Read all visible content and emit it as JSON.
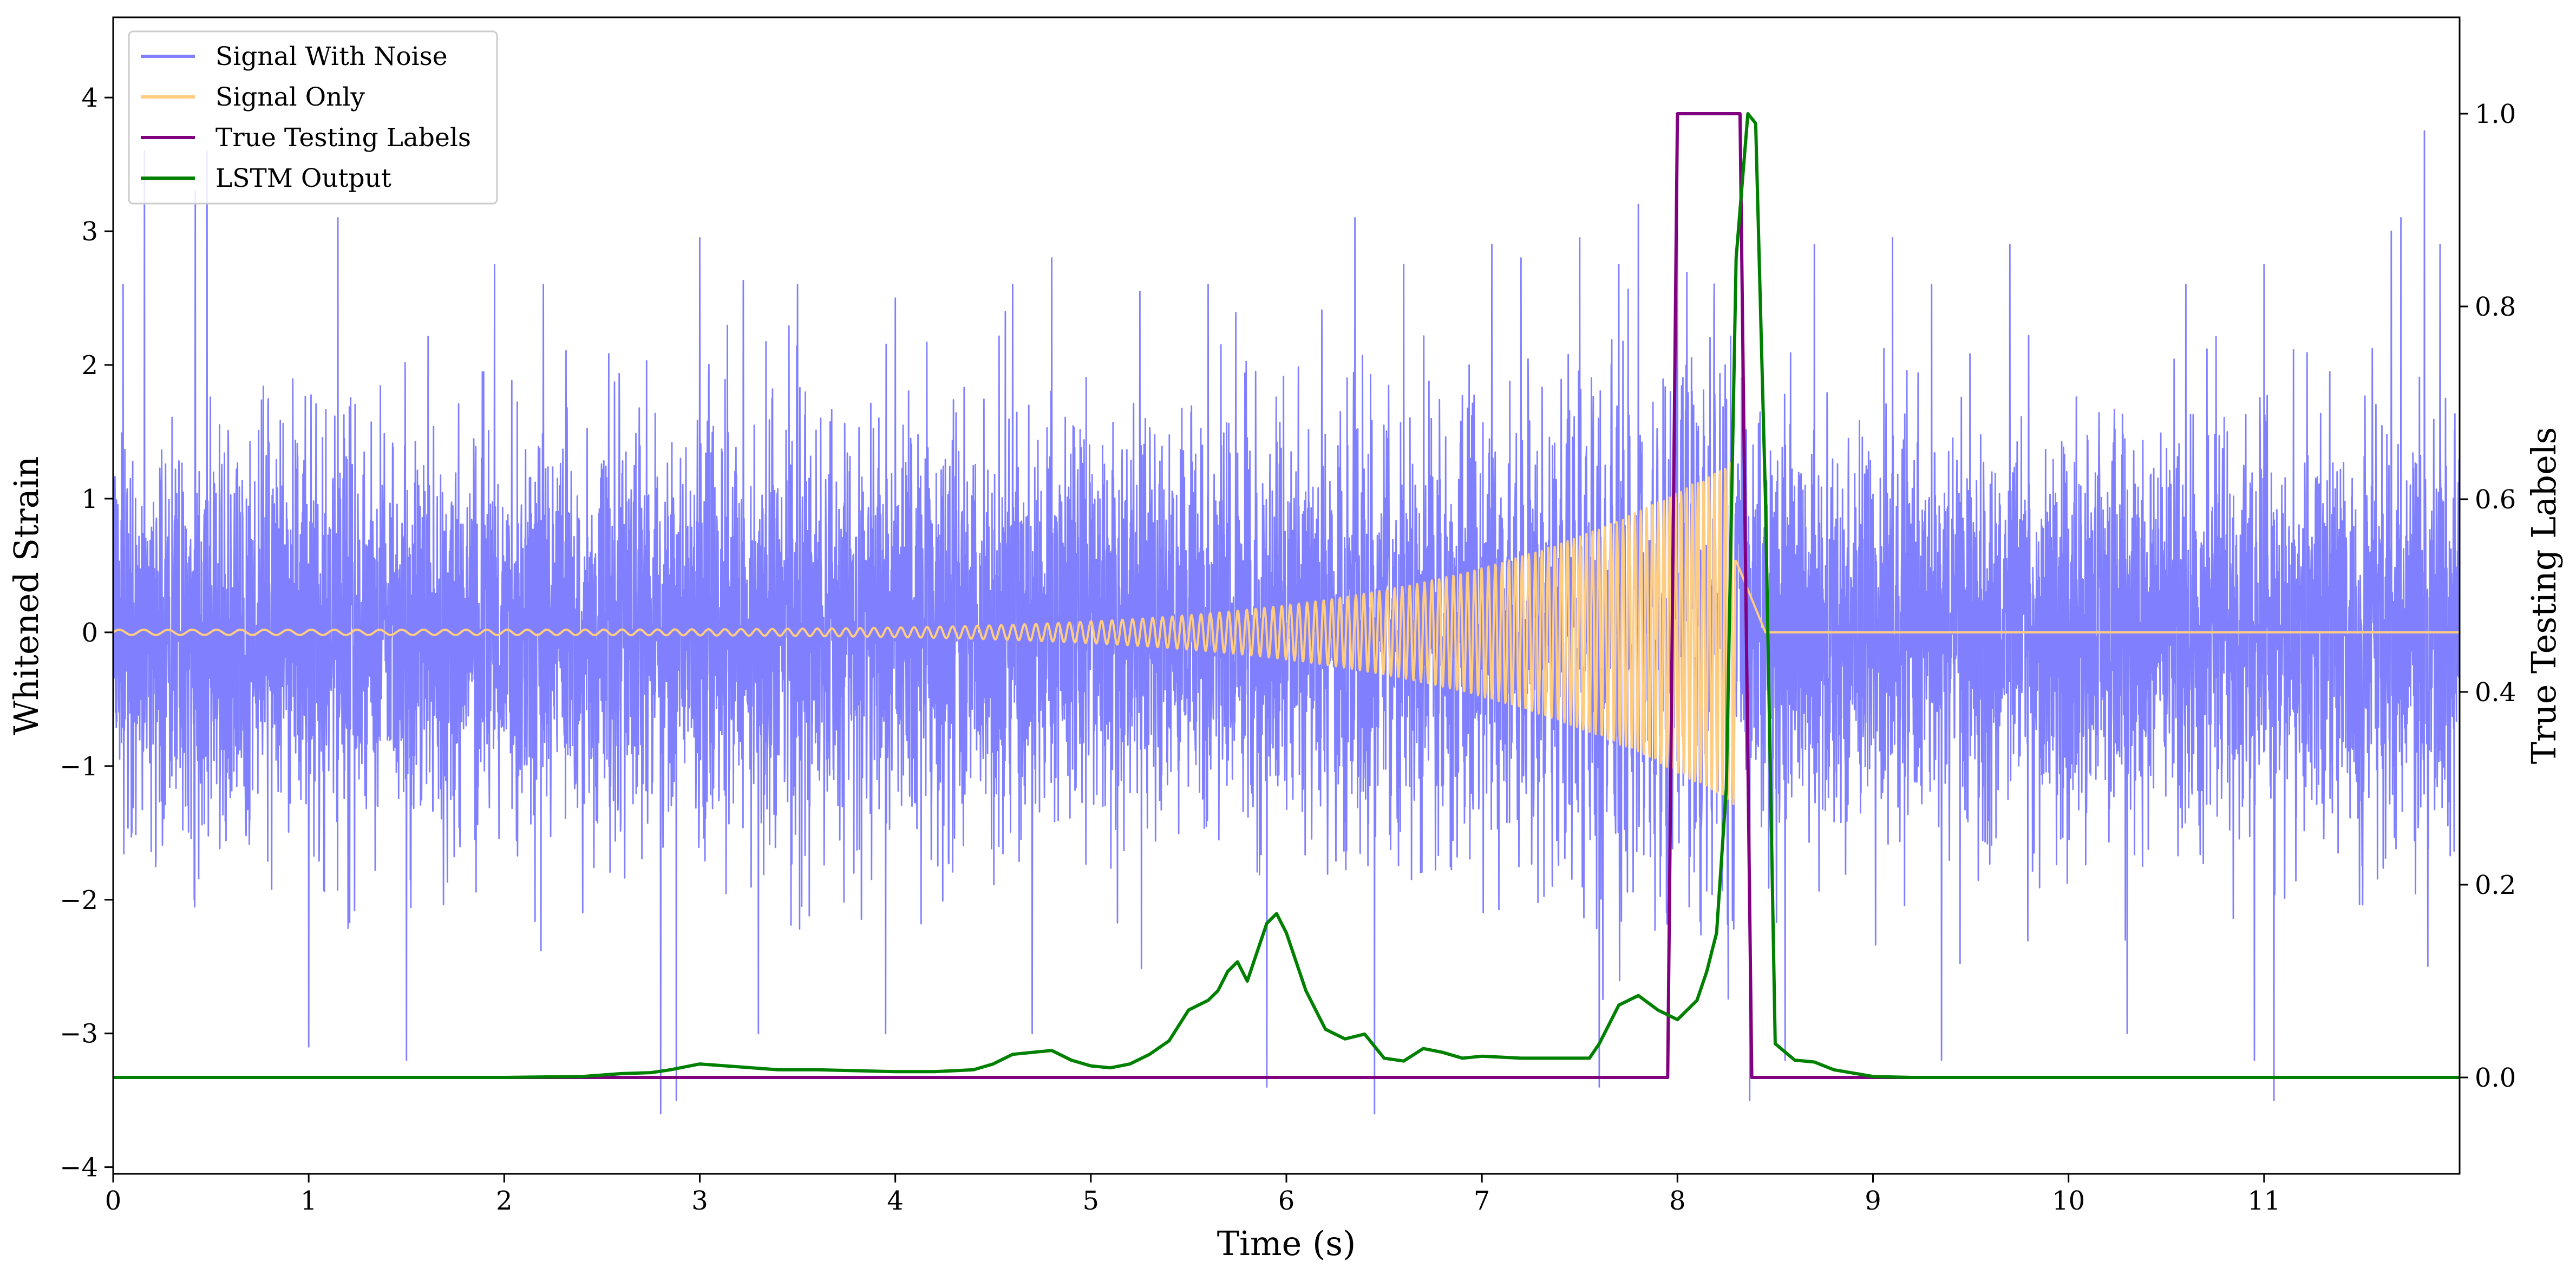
{
  "chart_data": {
    "type": "line",
    "xlabel": "Time (s)",
    "ylabel": "Whitened Strain",
    "y2label": "True Testing Labels",
    "xlim": [
      0,
      12
    ],
    "ylim": [
      -4.05,
      4.6
    ],
    "y2lim": [
      -0.1,
      1.1
    ],
    "xticks": [
      0,
      1,
      2,
      3,
      4,
      5,
      6,
      7,
      8,
      9,
      10,
      11
    ],
    "yticks": [
      -4,
      -3,
      -2,
      -1,
      0,
      1,
      2,
      3,
      4
    ],
    "y2ticks": [
      0.0,
      0.2,
      0.4,
      0.6,
      0.8,
      1.0
    ],
    "legend_position": "upper-left",
    "grid": false,
    "series": [
      {
        "name": "Signal With Noise",
        "axis": "left",
        "color": "#8080ff",
        "noise_std": 0.75,
        "noise_peaks": [
          [
            0.05,
            2.6
          ],
          [
            0.16,
            3.6
          ],
          [
            0.42,
            3.3
          ],
          [
            0.48,
            3.6
          ],
          [
            1.15,
            3.1
          ],
          [
            1.95,
            2.75
          ],
          [
            2.2,
            2.6
          ],
          [
            3.0,
            2.95
          ],
          [
            3.5,
            2.6
          ],
          [
            4.0,
            2.5
          ],
          [
            4.6,
            2.6
          ],
          [
            4.8,
            2.8
          ],
          [
            5.25,
            2.55
          ],
          [
            5.6,
            2.6
          ],
          [
            6.35,
            3.1
          ],
          [
            6.6,
            2.75
          ],
          [
            7.05,
            2.9
          ],
          [
            7.2,
            2.8
          ],
          [
            7.5,
            2.95
          ],
          [
            7.7,
            2.75
          ],
          [
            7.8,
            3.2
          ],
          [
            8.0,
            3.0
          ],
          [
            8.7,
            2.9
          ],
          [
            9.1,
            2.95
          ],
          [
            9.3,
            2.6
          ],
          [
            9.7,
            2.9
          ],
          [
            10.6,
            2.6
          ],
          [
            11.0,
            2.75
          ],
          [
            11.65,
            3.0
          ],
          [
            11.7,
            3.1
          ],
          [
            11.82,
            3.75
          ],
          [
            11.9,
            2.9
          ]
        ],
        "noise_troughs": [
          [
            1.0,
            -3.1
          ],
          [
            1.5,
            -3.2
          ],
          [
            2.8,
            -3.6
          ],
          [
            2.88,
            -3.5
          ],
          [
            3.3,
            -3.0
          ],
          [
            3.95,
            -3.0
          ],
          [
            4.7,
            -3.0
          ],
          [
            5.9,
            -3.4
          ],
          [
            6.45,
            -3.6
          ],
          [
            7.6,
            -3.4
          ],
          [
            8.37,
            -3.5
          ],
          [
            8.55,
            -3.2
          ],
          [
            9.35,
            -3.2
          ],
          [
            10.3,
            -3.0
          ],
          [
            10.95,
            -3.2
          ],
          [
            11.05,
            -3.5
          ],
          [
            12.0,
            -3.5
          ]
        ]
      },
      {
        "name": "Signal Only",
        "axis": "left",
        "color": "#ffcc80",
        "chirp_start": 0.0,
        "chirp_merger": 8.3,
        "chirp_end": 8.45,
        "amplitude_start": 0.02,
        "amplitude_peak": 1.3,
        "frequency_start_hz": 8,
        "frequency_peak_hz": 46
      },
      {
        "name": "True Testing Labels",
        "axis": "right",
        "color": "#800080",
        "x": [
          0.0,
          7.95,
          8.0,
          8.32,
          8.38,
          12.0
        ],
        "y": [
          0.0,
          0.0,
          1.0,
          1.0,
          0.0,
          0.0
        ]
      },
      {
        "name": "LSTM Output",
        "axis": "right",
        "color": "#008000",
        "x": [
          0.0,
          1.0,
          2.0,
          2.4,
          2.6,
          2.75,
          2.85,
          3.0,
          3.2,
          3.4,
          3.6,
          3.8,
          4.0,
          4.2,
          4.4,
          4.5,
          4.6,
          4.7,
          4.8,
          4.9,
          5.0,
          5.1,
          5.2,
          5.3,
          5.4,
          5.5,
          5.6,
          5.65,
          5.7,
          5.75,
          5.8,
          5.85,
          5.9,
          5.95,
          6.0,
          6.1,
          6.2,
          6.3,
          6.4,
          6.5,
          6.6,
          6.7,
          6.8,
          6.9,
          7.0,
          7.2,
          7.4,
          7.55,
          7.6,
          7.7,
          7.8,
          7.9,
          8.0,
          8.05,
          8.1,
          8.15,
          8.2,
          8.25,
          8.3,
          8.36,
          8.4,
          8.45,
          8.5,
          8.6,
          8.7,
          8.8,
          9.0,
          9.2,
          12.0
        ],
        "y": [
          0.0,
          0.0,
          0.0,
          0.001,
          0.004,
          0.005,
          0.008,
          0.014,
          0.011,
          0.008,
          0.008,
          0.007,
          0.006,
          0.006,
          0.008,
          0.014,
          0.024,
          0.026,
          0.028,
          0.018,
          0.012,
          0.01,
          0.014,
          0.024,
          0.038,
          0.07,
          0.08,
          0.09,
          0.11,
          0.12,
          0.1,
          0.13,
          0.16,
          0.17,
          0.15,
          0.09,
          0.05,
          0.04,
          0.045,
          0.02,
          0.017,
          0.03,
          0.026,
          0.02,
          0.022,
          0.02,
          0.02,
          0.02,
          0.035,
          0.075,
          0.085,
          0.07,
          0.06,
          0.07,
          0.08,
          0.11,
          0.15,
          0.3,
          0.85,
          1.0,
          0.99,
          0.6,
          0.035,
          0.018,
          0.016,
          0.008,
          0.001,
          0.0,
          0.0
        ]
      }
    ]
  }
}
